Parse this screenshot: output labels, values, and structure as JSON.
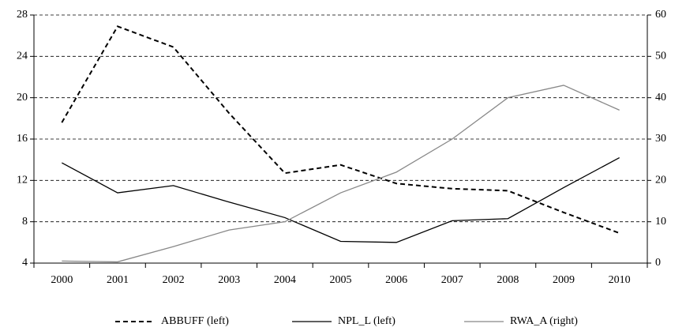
{
  "chart_data": {
    "type": "line",
    "categories": [
      "2000",
      "2001",
      "2002",
      "2003",
      "2004",
      "2005",
      "2006",
      "2007",
      "2008",
      "2009",
      "2010"
    ],
    "series": [
      {
        "name": "ABBUFF (left)",
        "color": "#000000",
        "line_style": "dashed",
        "axis": "y",
        "values": [
          17.6,
          26.9,
          24.9,
          18.5,
          12.7,
          13.5,
          11.7,
          11.2,
          11.0,
          8.9,
          6.9
        ]
      },
      {
        "name": "NPL_L (left)",
        "color": "#000000",
        "line_style": "solid",
        "axis": "y",
        "values": [
          13.7,
          10.8,
          11.5,
          9.9,
          8.4,
          6.1,
          6.0,
          8.1,
          8.3,
          11.3,
          14.2
        ]
      },
      {
        "name": "RWA_A (right)",
        "color": "#888888",
        "line_style": "solid",
        "axis": "y2",
        "values": [
          0.5,
          0.3,
          4,
          8,
          10,
          17,
          22,
          30,
          40,
          43,
          37
        ]
      }
    ],
    "ylim": [
      4,
      28
    ],
    "yticks": [
      4,
      8,
      12,
      16,
      20,
      24,
      28
    ],
    "y2lim": [
      0,
      60
    ],
    "y2ticks": [
      0,
      10,
      20,
      30,
      40,
      50,
      60
    ],
    "grid": true,
    "legend": "bottom"
  }
}
